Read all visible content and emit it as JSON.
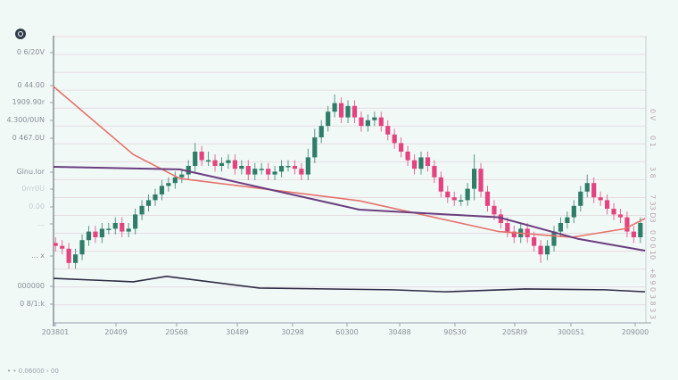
{
  "chart_data": {
    "type": "candlestick",
    "title": "",
    "xlabel": "",
    "ylabel": "",
    "ylim": [
      0,
      100
    ],
    "grid": true,
    "colors": {
      "up": "#2f7d69",
      "down": "#e4437f",
      "line_orange": "#e5726a",
      "line_purple": "#6a3e7f",
      "line_dark": "#2d2a44",
      "grid": "#e6dbe1",
      "axis": "#555a66"
    },
    "y_tick_labels": [
      "0 6/20V",
      "0 44.00",
      "1909.90r",
      "4.300/0UN",
      "0 467.0U",
      "Glnu.lor",
      "0rrr0U",
      "0.00",
      "...",
      "... x",
      "000000",
      "0 8/1:k"
    ],
    "right_tick_labels": [
      "0 V",
      "0 1",
      "3 8",
      "7 33 D3",
      "0 0 0 10",
      "+8 9 0",
      "3 8 3 3"
    ],
    "x_tick_labels": [
      "203801",
      "20409",
      "20S68",
      "30489",
      "30298",
      "60300",
      "30488",
      "90S30",
      "20SRI9",
      "300051",
      "209000"
    ],
    "open": [
      28,
      27,
      26,
      21,
      24,
      29,
      32,
      30,
      33,
      33,
      35,
      32,
      33,
      38,
      41,
      43,
      45,
      48,
      49,
      51,
      52,
      55,
      60,
      57,
      57,
      55,
      56,
      57,
      54,
      55,
      52,
      54,
      54,
      52,
      53,
      55,
      55,
      54,
      52,
      58,
      65,
      69,
      74,
      77,
      72,
      76,
      72,
      69,
      71,
      72,
      69,
      66,
      63,
      60,
      57,
      54,
      58,
      55,
      51,
      46,
      44,
      43,
      43,
      47,
      54,
      46,
      41,
      38,
      35,
      32,
      30,
      33,
      30,
      27,
      24,
      27,
      32,
      35,
      37,
      41,
      46,
      49,
      44,
      43,
      40,
      38,
      37,
      32,
      30
    ],
    "high": [
      30,
      29,
      28,
      26,
      31,
      34,
      34,
      35,
      35,
      37,
      37,
      35,
      40,
      43,
      45,
      47,
      50,
      51,
      53,
      54,
      57,
      63,
      62,
      60,
      59,
      58,
      59,
      59,
      57,
      57,
      56,
      56,
      56,
      55,
      57,
      57,
      57,
      56,
      61,
      68,
      71,
      76,
      80,
      79,
      78,
      78,
      74,
      73,
      74,
      74,
      71,
      68,
      65,
      62,
      59,
      60,
      60,
      57,
      53,
      48,
      46,
      45,
      49,
      59,
      56,
      48,
      43,
      40,
      37,
      34,
      35,
      35,
      32,
      29,
      29,
      34,
      37,
      39,
      43,
      48,
      52,
      51,
      46,
      45,
      42,
      40,
      39,
      34,
      37
    ],
    "low": [
      25,
      24,
      19,
      19,
      22,
      27,
      28,
      28,
      31,
      31,
      30,
      30,
      31,
      36,
      39,
      41,
      43,
      46,
      47,
      49,
      50,
      53,
      55,
      55,
      53,
      53,
      54,
      52,
      52,
      50,
      50,
      52,
      50,
      50,
      51,
      53,
      52,
      50,
      50,
      56,
      63,
      67,
      72,
      70,
      70,
      70,
      67,
      67,
      69,
      67,
      64,
      61,
      58,
      55,
      52,
      52,
      53,
      49,
      44,
      42,
      41,
      41,
      41,
      43,
      44,
      39,
      36,
      33,
      30,
      28,
      28,
      28,
      25,
      21,
      22,
      25,
      30,
      33,
      35,
      39,
      44,
      42,
      41,
      38,
      36,
      35,
      30,
      28,
      28
    ],
    "close": [
      27,
      26,
      21,
      24,
      29,
      32,
      30,
      33,
      33,
      35,
      32,
      33,
      38,
      41,
      43,
      45,
      48,
      49,
      51,
      52,
      55,
      60,
      57,
      57,
      55,
      56,
      57,
      54,
      55,
      52,
      54,
      54,
      52,
      53,
      55,
      55,
      54,
      52,
      58,
      65,
      69,
      74,
      77,
      72,
      76,
      72,
      69,
      71,
      72,
      69,
      66,
      63,
      60,
      57,
      54,
      58,
      55,
      51,
      46,
      44,
      43,
      43,
      47,
      54,
      46,
      41,
      38,
      35,
      32,
      30,
      33,
      30,
      27,
      24,
      27,
      32,
      35,
      37,
      41,
      46,
      49,
      44,
      43,
      40,
      38,
      37,
      32,
      30,
      35
    ],
    "lines": [
      {
        "color": "#e5726a",
        "points": [
          [
            0,
            82.8
          ],
          [
            12,
            59
          ],
          [
            19,
            50.6
          ],
          [
            46,
            42.8
          ],
          [
            67,
            32
          ],
          [
            78,
            30
          ],
          [
            86,
            33
          ],
          [
            89,
            36.6
          ]
        ]
      },
      {
        "color": "#6a3e7f",
        "points": [
          [
            0,
            54.7
          ],
          [
            19,
            53.8
          ],
          [
            46,
            39.7
          ],
          [
            67,
            37
          ],
          [
            79,
            29.4
          ],
          [
            89,
            25.3
          ]
        ]
      },
      {
        "color": "#2d2a44",
        "points": [
          [
            0,
            15.6
          ],
          [
            12,
            14.4
          ],
          [
            17,
            16.3
          ],
          [
            31,
            12.2
          ],
          [
            51,
            11.6
          ],
          [
            59,
            10.9
          ],
          [
            71,
            11.9
          ],
          [
            83,
            11.6
          ],
          [
            89,
            10.9
          ]
        ]
      }
    ]
  },
  "footer": "• • 0.06000 › 00"
}
